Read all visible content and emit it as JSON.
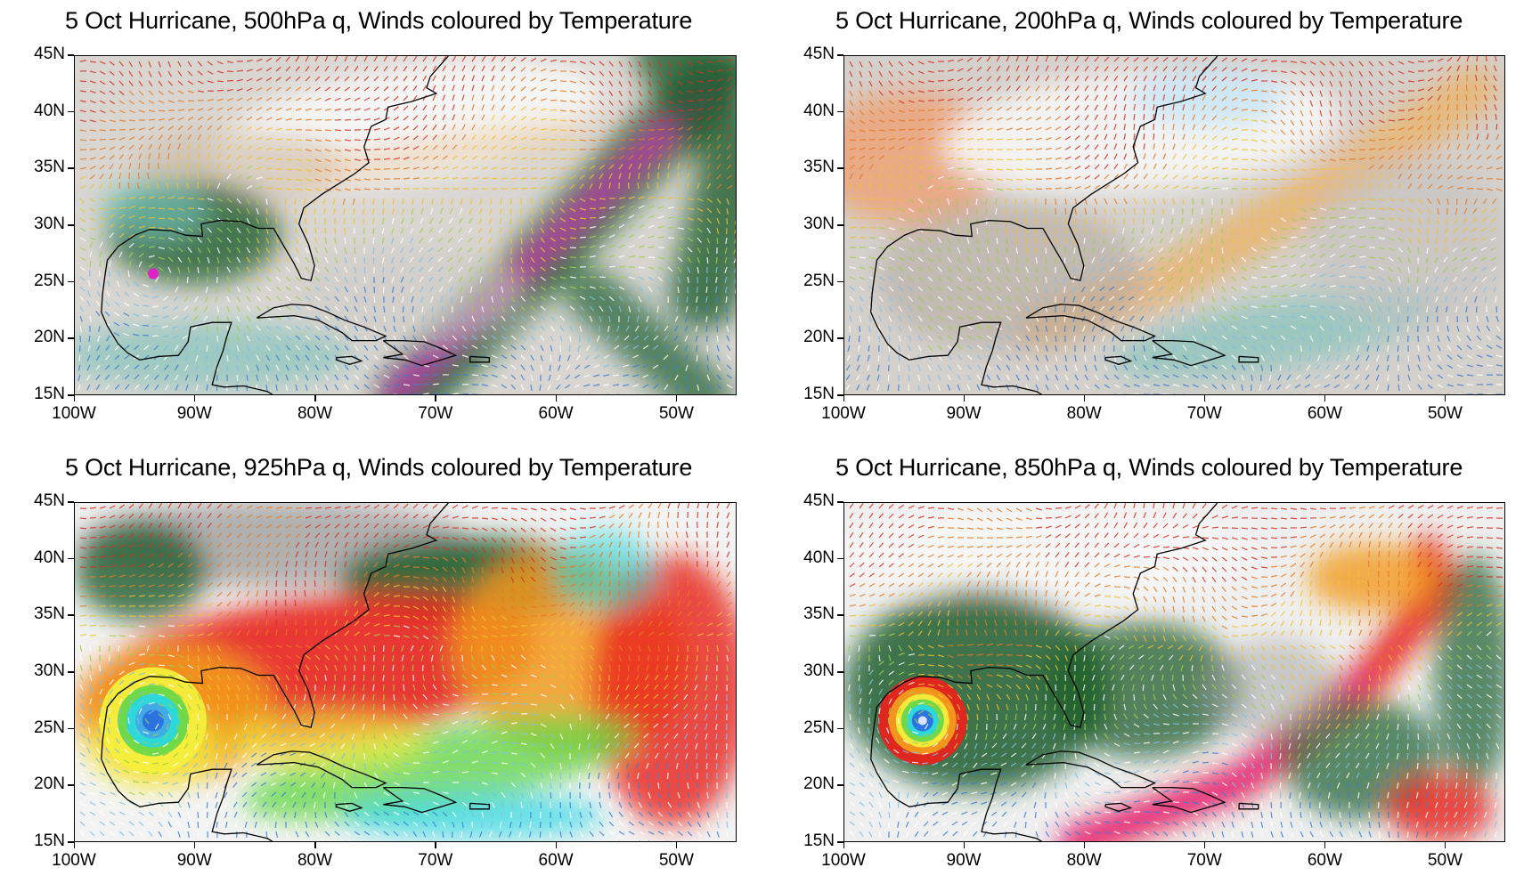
{
  "panels": [
    {
      "id": "p500",
      "title": "5 Oct Hurricane, 500hPa q, Winds coloured by Temperature",
      "scheme": "mid"
    },
    {
      "id": "p200",
      "title": "5 Oct Hurricane, 200hPa q, Winds coloured by Temperature",
      "scheme": "upper"
    },
    {
      "id": "p925",
      "title": "5 Oct Hurricane, 925hPa q, Winds coloured by Temperature",
      "scheme": "surface"
    },
    {
      "id": "p850",
      "title": "5 Oct Hurricane, 850hPa q, Winds coloured by Temperature",
      "scheme": "low"
    }
  ],
  "axes": {
    "lat_labels": [
      "45N",
      "40N",
      "35N",
      "30N",
      "25N",
      "20N",
      "15N"
    ],
    "lon_labels": [
      "100W",
      "90W",
      "80W",
      "70W",
      "60W",
      "50W"
    ]
  },
  "map_extent": {
    "lon_min": -100,
    "lon_max": -45,
    "lat_min": 15,
    "lat_max": 45
  },
  "hurricane_center": {
    "lon": -93.5,
    "lat": 25.8
  },
  "colors": {
    "moist_dark": "#1f5e2e",
    "moist_teal": "#6fbfb4",
    "dry_white": "#f7f7f7",
    "dry_grey": "#a8a8a8",
    "very_moist_red": "#e8221c",
    "very_moist_orange": "#f39a1e",
    "very_moist_yellow": "#f4ee3c",
    "very_moist_green": "#68d84a",
    "very_moist_cyan": "#29d8e2",
    "magenta": "#e020c8",
    "eye_blue": "#2a70e0"
  }
}
